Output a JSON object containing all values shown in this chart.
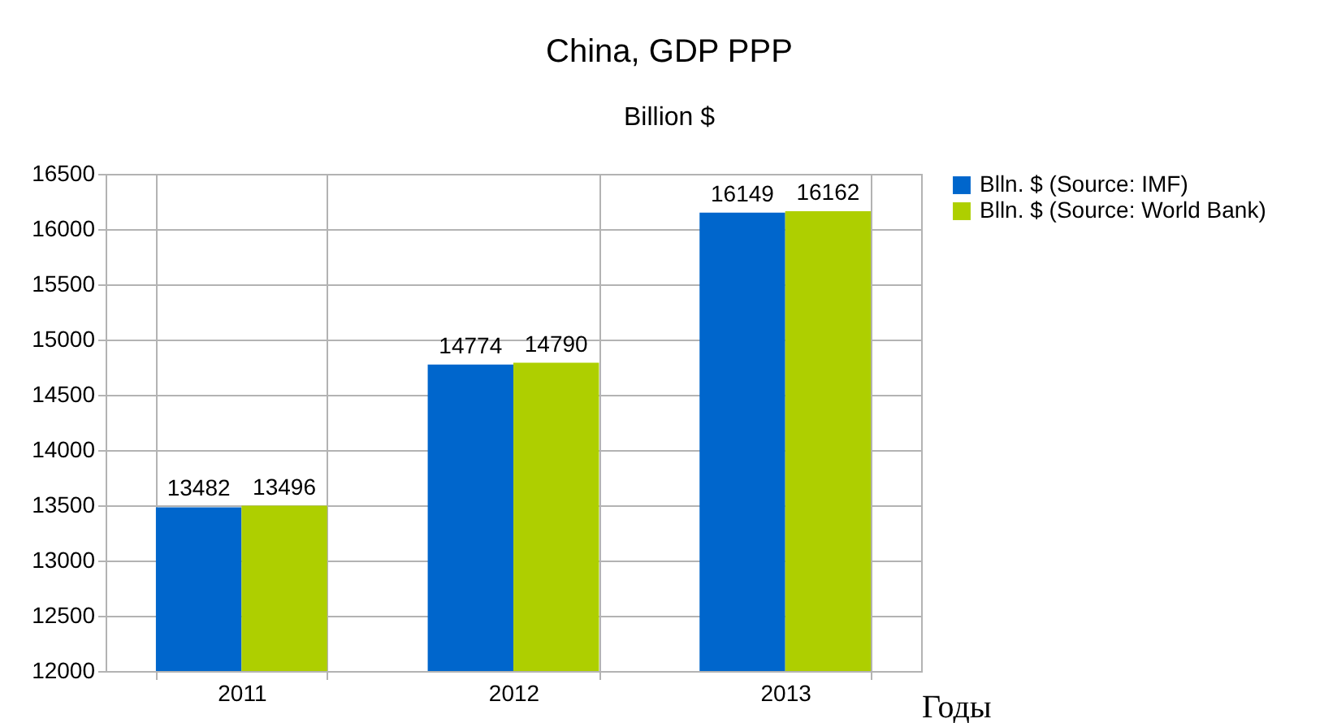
{
  "chart_data": {
    "type": "bar",
    "title": "China, GDP PPP",
    "subtitle": "Billion $",
    "xlabel": "Годы",
    "categories": [
      "2011",
      "2012",
      "2013"
    ],
    "series": [
      {
        "name": "Blln. $ (Source: IMF)",
        "color": "#0066cc",
        "values": [
          13482,
          14774,
          16149
        ]
      },
      {
        "name": "Blln. $ (Source: World Bank)",
        "color": "#aecf00",
        "values": [
          13496,
          14790,
          16162
        ]
      }
    ],
    "ylim": [
      12000,
      16500
    ],
    "yticks": [
      12000,
      12500,
      13000,
      13500,
      14000,
      14500,
      15000,
      15500,
      16000,
      16500
    ],
    "grid": true,
    "legend": "right",
    "data_labels": true
  }
}
